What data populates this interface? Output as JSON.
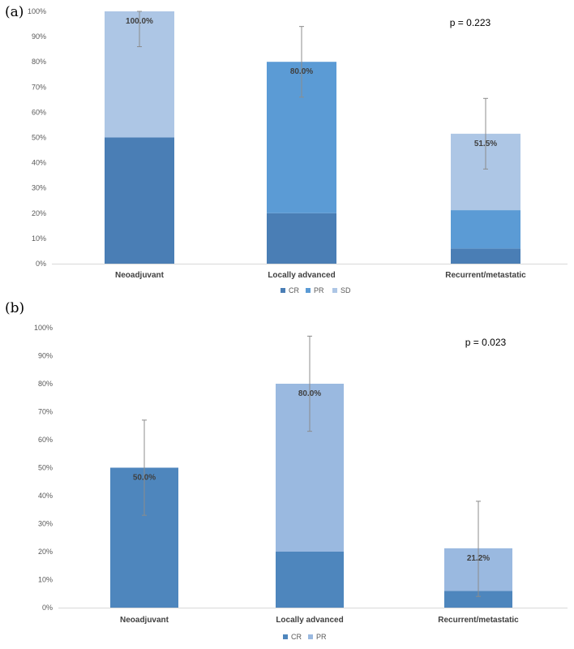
{
  "chart_data": [
    {
      "type": "bar",
      "stacked": true,
      "panel_label": "(a)",
      "categories": [
        "Neoadjuvant",
        "Locally advanced",
        "Recurrent/metastatic"
      ],
      "y_ticks": [
        "0%",
        "10%",
        "20%",
        "30%",
        "40%",
        "50%",
        "60%",
        "70%",
        "80%",
        "90%",
        "100%"
      ],
      "ylim": [
        0,
        100
      ],
      "series": [
        {
          "name": "CR",
          "color": "#4a7eb5",
          "values": [
            50,
            20,
            6
          ]
        },
        {
          "name": "PR",
          "color": "#5b9bd5",
          "values": [
            0,
            60,
            15.2
          ]
        },
        {
          "name": "SD",
          "color": "#adc6e5",
          "values": [
            50,
            0,
            30.3
          ]
        }
      ],
      "totals": [
        100,
        80,
        51.5
      ],
      "total_labels": [
        "100.0%",
        "80.0%",
        "51.5%"
      ],
      "error_bars": [
        [
          86,
          100
        ],
        [
          66,
          94
        ],
        [
          37.5,
          65.5
        ]
      ],
      "annotation": "p = 0.223",
      "legend_position": "bottom"
    },
    {
      "type": "bar",
      "stacked": true,
      "panel_label": "(b)",
      "categories": [
        "Neoadjuvant",
        "Locally advanced",
        "Recurrent/metastatic"
      ],
      "y_ticks": [
        "0%",
        "10%",
        "20%",
        "30%",
        "40%",
        "50%",
        "60%",
        "70%",
        "80%",
        "90%",
        "100%"
      ],
      "ylim": [
        0,
        100
      ],
      "series": [
        {
          "name": "CR",
          "color": "#4e86bd",
          "values": [
            50,
            20,
            6
          ]
        },
        {
          "name": "PR",
          "color": "#9ab9e0",
          "values": [
            0,
            60,
            15.2
          ]
        }
      ],
      "totals": [
        50,
        80,
        21.2
      ],
      "total_labels": [
        "50.0%",
        "80.0%",
        "21.2%"
      ],
      "error_bars": [
        [
          33,
          67
        ],
        [
          63,
          97
        ],
        [
          4,
          38
        ]
      ],
      "annotation": "p = 0.023",
      "legend_position": "bottom"
    }
  ]
}
